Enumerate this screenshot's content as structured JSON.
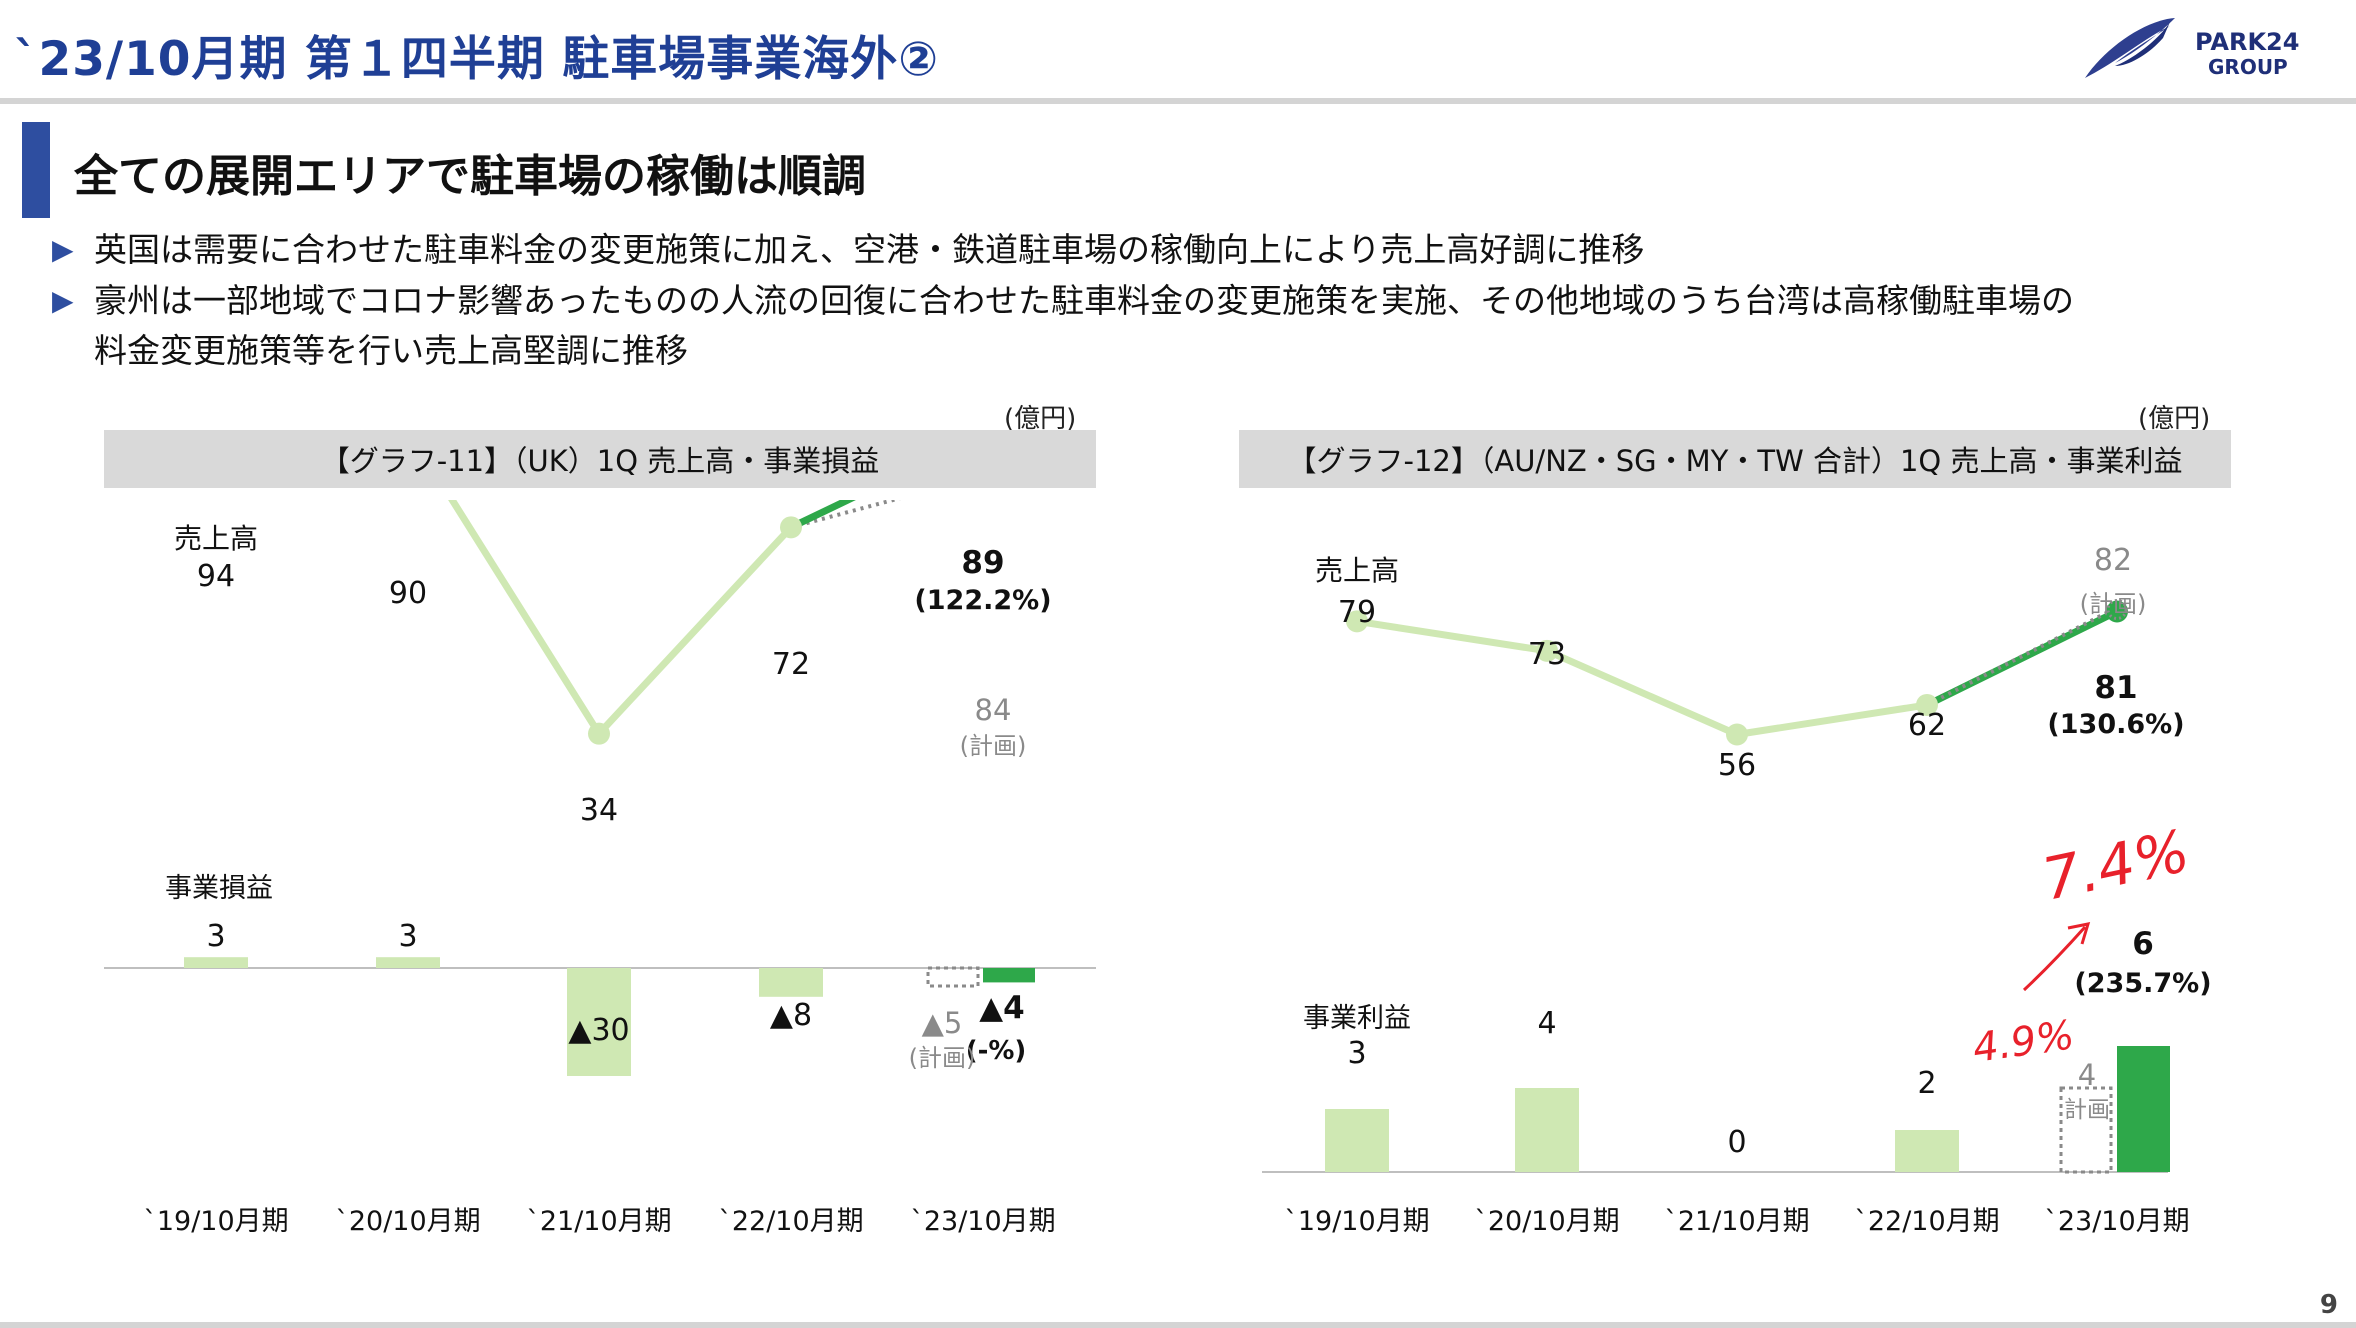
{
  "header": {
    "title": "`23/10月期 第１四半期 駐車場事業海外②",
    "logo_text_line1": "PARK24",
    "logo_text_line2": "GROUP"
  },
  "subtitle": "全ての展開エリアで駐車場の稼働は順調",
  "bullets": [
    {
      "mark": "▶",
      "lines": [
        "英国は需要に合わせた駐車料金の変更施策に加え、空港・鉄道駐車場の稼働向上により売上高好調に推移"
      ]
    },
    {
      "mark": "▶",
      "lines": [
        "豪州は一部地域でコロナ影響あったものの人流の回復に合わせた駐車料金の変更施策を実施、その他地域のうち台湾は高稼働駐車場の",
        "料金変更施策等を行い売上高堅調に推移"
      ]
    }
  ],
  "page_number": "9",
  "colors": {
    "title_blue": "#1f3f95",
    "light_green": "#cfe8b3",
    "dark_green": "#2ea84a",
    "plan_gray": "#8a8a8a",
    "caption_bg": "#d9d9d9",
    "handwriting_red": "#e8212b"
  },
  "chart_data": [
    {
      "type": "line",
      "unit": "(億円)",
      "title": "【グラフ-11】（UK）1Q 売上高・事業損益",
      "categories": [
        "`19/10月期",
        "`20/10月期",
        "`21/10月期",
        "`22/10月期",
        "`23/10月期"
      ],
      "sales": {
        "label": "売上高",
        "values": [
          94,
          90,
          34,
          72,
          89
        ],
        "value_labels": [
          "94",
          "90",
          "34",
          "72",
          "89"
        ],
        "latest_ratio": "(122.2%)",
        "plan_value": 84,
        "plan_value_label": "84",
        "plan_label": "(計画)",
        "ylim": [
          0,
          110
        ]
      },
      "profit": {
        "label": "事業損益",
        "type": "bar",
        "values": [
          3,
          3,
          -30,
          -8,
          -4
        ],
        "value_labels": [
          "3",
          "3",
          "▲30",
          "▲8",
          "▲4"
        ],
        "latest_ratio": "(-%)",
        "plan_value": -5,
        "plan_value_label": "▲5",
        "plan_label": "(計画)"
      }
    },
    {
      "type": "line",
      "unit": "(億円)",
      "title": "【グラフ-12】（AU/NZ・SG・MY・TW 合計）1Q 売上高・事業利益",
      "categories": [
        "`19/10月期",
        "`20/10月期",
        "`21/10月期",
        "`22/10月期",
        "`23/10月期"
      ],
      "sales": {
        "label": "売上高",
        "values": [
          79,
          73,
          56,
          62,
          81
        ],
        "value_labels": [
          "79",
          "73",
          "56",
          "62",
          "81"
        ],
        "latest_ratio": "(130.6%)",
        "plan_value": 82,
        "plan_value_label": "82",
        "plan_label": "(計画)",
        "ylim": [
          0,
          100
        ]
      },
      "profit": {
        "label": "事業利益",
        "type": "bar",
        "values": [
          3,
          4,
          0,
          2,
          6
        ],
        "value_labels": [
          "3",
          "4",
          "0",
          "2",
          "6"
        ],
        "latest_ratio": "(235.7%)",
        "plan_value": 4,
        "plan_value_label": "4",
        "plan_label": "計画"
      },
      "annotations": {
        "margin_latest": "7.4%",
        "margin_plan": "4.9%"
      }
    }
  ]
}
